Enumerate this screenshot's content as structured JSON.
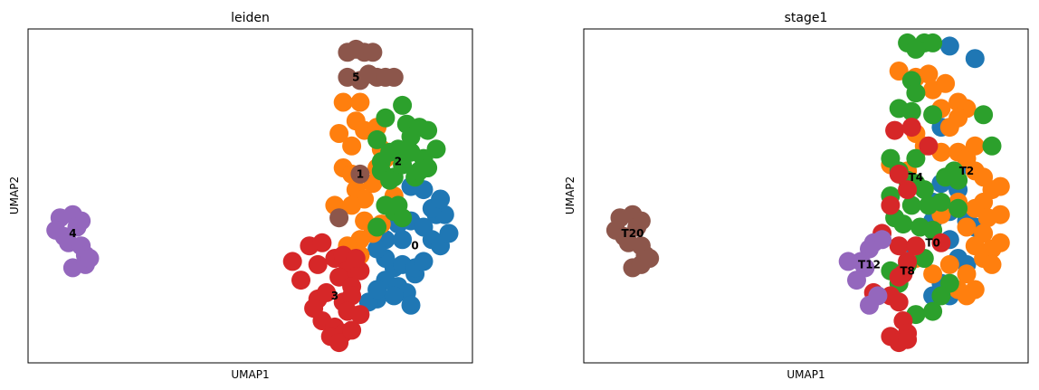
{
  "chart_data": [
    {
      "type": "scatter",
      "title": "leiden",
      "xlabel": "UMAP1",
      "ylabel": "UMAP2",
      "ticks": "none",
      "grid": false,
      "legend": "labels on data (cluster centroids)",
      "xlim": [
        0,
        100
      ],
      "ylim": [
        0,
        100
      ],
      "groups": [
        {
          "label": "0",
          "color": "#1f77b4",
          "label_xy": [
            89,
            34
          ],
          "points": [
            [
              82,
              36
            ],
            [
              86,
              36
            ],
            [
              88,
              42
            ],
            [
              85,
              41
            ],
            [
              91,
              40
            ],
            [
              93,
              36
            ],
            [
              95,
              34
            ],
            [
              97,
              38
            ],
            [
              94,
              44
            ],
            [
              96,
              44
            ],
            [
              91,
              52
            ],
            [
              88,
              53
            ],
            [
              93,
              46
            ],
            [
              95,
              49
            ],
            [
              84,
              27
            ],
            [
              82,
              23
            ],
            [
              80,
              17
            ],
            [
              85,
              21
            ],
            [
              87,
              19
            ],
            [
              89,
              25
            ],
            [
              82,
              30
            ],
            [
              86,
              28
            ],
            [
              89,
              27
            ],
            [
              91,
              29
            ],
            [
              88,
              15
            ],
            [
              84,
              18
            ],
            [
              78,
              16
            ],
            [
              80,
              20
            ],
            [
              80,
              33
            ],
            [
              79,
              38
            ]
          ]
        },
        {
          "label": "1",
          "color": "#ff7f0e",
          "label_xy": [
            76,
            57
          ],
          "points": [
            [
              72,
              80
            ],
            [
              76,
              80
            ],
            [
              75,
              74
            ],
            [
              77,
              71
            ],
            [
              80,
              72
            ],
            [
              81,
              65
            ],
            [
              71,
              70
            ],
            [
              74,
              66
            ],
            [
              72,
              59
            ],
            [
              74,
              57
            ],
            [
              75,
              52
            ],
            [
              77,
              49
            ],
            [
              79,
              54
            ],
            [
              80,
              59
            ],
            [
              70,
              47
            ],
            [
              74,
              47
            ],
            [
              77,
              42
            ],
            [
              79,
              38
            ],
            [
              81,
              41
            ],
            [
              76,
              36
            ],
            [
              73,
              34
            ],
            [
              76,
              31
            ],
            [
              75,
              28
            ],
            [
              84,
              50
            ],
            [
              82,
              62
            ]
          ]
        },
        {
          "label": "2",
          "color": "#2ca02c",
          "label_xy": [
            85,
            61
          ],
          "points": [
            [
              82,
              75
            ],
            [
              86,
              79
            ],
            [
              87,
              73
            ],
            [
              88,
              69
            ],
            [
              90,
              72
            ],
            [
              92,
              71
            ],
            [
              94,
              65
            ],
            [
              85,
              65
            ],
            [
              88,
              64
            ],
            [
              81,
              61
            ],
            [
              83,
              64
            ],
            [
              84,
              56
            ],
            [
              86,
              60
            ],
            [
              89,
              56
            ],
            [
              90,
              58
            ],
            [
              91,
              62
            ],
            [
              92,
              59
            ],
            [
              81,
              58
            ],
            [
              83,
              55
            ],
            [
              82,
              47
            ],
            [
              84,
              45
            ],
            [
              86,
              43
            ],
            [
              80,
              40
            ],
            [
              85,
              47
            ],
            [
              80,
              68
            ]
          ]
        },
        {
          "label": "3",
          "color": "#d62728",
          "label_xy": [
            70,
            18
          ],
          "points": [
            [
              64,
              34
            ],
            [
              67,
              35
            ],
            [
              66,
              28
            ],
            [
              70,
              30
            ],
            [
              72,
              31
            ],
            [
              73,
              26
            ],
            [
              71,
              24
            ],
            [
              74,
              21
            ],
            [
              76,
              26
            ],
            [
              75,
              30
            ],
            [
              60,
              29
            ],
            [
              62,
              23
            ],
            [
              66,
              17
            ],
            [
              68,
              19
            ],
            [
              72,
              16
            ],
            [
              74,
              18
            ],
            [
              73,
              13
            ],
            [
              76,
              12
            ],
            [
              65,
              14
            ],
            [
              67,
              10
            ],
            [
              70,
              8
            ],
            [
              72,
              6
            ],
            [
              69,
              5
            ],
            [
              71,
              3
            ],
            [
              74,
              7
            ]
          ]
        },
        {
          "label": "4",
          "color": "#9467bd",
          "label_xy": [
            8,
            38
          ],
          "points": [
            [
              5,
              43
            ],
            [
              8,
              44
            ],
            [
              10,
              42
            ],
            [
              4,
              39
            ],
            [
              6,
              37
            ],
            [
              9,
              40
            ],
            [
              7,
              35
            ],
            [
              10,
              34
            ],
            [
              11,
              31
            ],
            [
              8,
              27
            ],
            [
              11,
              28
            ],
            [
              12,
              30
            ]
          ]
        },
        {
          "label": "5",
          "color": "#8c564b",
          "label_xy": [
            75,
            88
          ],
          "points": [
            [
              73,
              96
            ],
            [
              75,
              97
            ],
            [
              77,
              96
            ],
            [
              79,
              96
            ],
            [
              73,
              88
            ],
            [
              76,
              87
            ],
            [
              78,
              89
            ],
            [
              80,
              88
            ],
            [
              82,
              88
            ],
            [
              84,
              88
            ],
            [
              76,
              57
            ],
            [
              71,
              43
            ]
          ]
        }
      ]
    },
    {
      "type": "scatter",
      "title": "stage1",
      "xlabel": "UMAP1",
      "ylabel": "UMAP2",
      "ticks": "none",
      "grid": false,
      "legend": "labels on data (group centroids)",
      "xlim": [
        0,
        100
      ],
      "ylim": [
        0,
        100
      ],
      "groups": [
        {
          "label": "T0",
          "color": "#1f77b4",
          "label_xy": [
            80,
            35
          ],
          "points": [
            [
              84,
              98
            ],
            [
              90,
              94
            ],
            [
              82,
              72
            ],
            [
              88,
              60
            ],
            [
              82,
              54
            ],
            [
              86,
              52
            ],
            [
              80,
              48
            ],
            [
              84,
              45
            ],
            [
              88,
              42
            ],
            [
              80,
              42
            ],
            [
              84,
              36
            ],
            [
              86,
              30
            ],
            [
              88,
              28
            ],
            [
              82,
              22
            ],
            [
              84,
              18
            ],
            [
              80,
              18
            ],
            [
              76,
              32
            ],
            [
              90,
              40
            ]
          ]
        },
        {
          "label": "T2",
          "color": "#ff7f0e",
          "label_xy": [
            88,
            58
          ],
          "points": [
            [
              72,
              90
            ],
            [
              76,
              88
            ],
            [
              79,
              89
            ],
            [
              80,
              84
            ],
            [
              83,
              86
            ],
            [
              86,
              80
            ],
            [
              88,
              78
            ],
            [
              86,
              75
            ],
            [
              82,
              78
            ],
            [
              84,
              72
            ],
            [
              76,
              70
            ],
            [
              78,
              66
            ],
            [
              82,
              64
            ],
            [
              86,
              64
            ],
            [
              90,
              66
            ],
            [
              88,
              62
            ],
            [
              90,
              58
            ],
            [
              92,
              56
            ],
            [
              94,
              52
            ],
            [
              96,
              53
            ],
            [
              92,
              48
            ],
            [
              93,
              43
            ],
            [
              96,
              44
            ],
            [
              90,
              46
            ],
            [
              88,
              40
            ],
            [
              92,
              38
            ],
            [
              94,
              33
            ],
            [
              96,
              35
            ],
            [
              90,
              34
            ],
            [
              92,
              30
            ],
            [
              94,
              28
            ],
            [
              82,
              44
            ],
            [
              86,
              48
            ],
            [
              80,
              25
            ],
            [
              84,
              28
            ],
            [
              88,
              25
            ],
            [
              90,
              20
            ],
            [
              86,
              20
            ],
            [
              88,
              18
            ],
            [
              76,
              30
            ],
            [
              74,
              58
            ],
            [
              70,
              60
            ]
          ]
        },
        {
          "label": "T4",
          "color": "#2ca02c",
          "label_xy": [
            76,
            56
          ],
          "points": [
            [
              74,
              99
            ],
            [
              78,
              99
            ],
            [
              80,
              99
            ],
            [
              76,
              97
            ],
            [
              75,
              87
            ],
            [
              76,
              83
            ],
            [
              72,
              78
            ],
            [
              75,
              77
            ],
            [
              80,
              76
            ],
            [
              70,
              62
            ],
            [
              76,
              62
            ],
            [
              72,
              58
            ],
            [
              74,
              55
            ],
            [
              76,
              54
            ],
            [
              78,
              52
            ],
            [
              70,
              50
            ],
            [
              75,
              47
            ],
            [
              79,
              47
            ],
            [
              82,
              48
            ],
            [
              71,
              43
            ],
            [
              73,
              41
            ],
            [
              77,
              40
            ],
            [
              80,
              39
            ],
            [
              86,
              46
            ],
            [
              86,
              55
            ],
            [
              83,
              56
            ],
            [
              85,
              58
            ],
            [
              92,
              76
            ],
            [
              94,
              66
            ],
            [
              78,
              30
            ],
            [
              84,
              22
            ],
            [
              82,
              18
            ],
            [
              70,
              26
            ],
            [
              72,
              22
            ],
            [
              76,
              12
            ],
            [
              80,
              13
            ],
            [
              74,
              28
            ]
          ]
        },
        {
          "label": "T8",
          "color": "#d62728",
          "label_xy": [
            74,
            26
          ],
          "points": [
            [
              71,
              71
            ],
            [
              75,
              72
            ],
            [
              79,
              66
            ],
            [
              72,
              57
            ],
            [
              74,
              52
            ],
            [
              70,
              47
            ],
            [
              68,
              38
            ],
            [
              72,
              34
            ],
            [
              76,
              34
            ],
            [
              82,
              35
            ],
            [
              74,
              29
            ],
            [
              73,
              25
            ],
            [
              72,
              24
            ],
            [
              66,
              19
            ],
            [
              70,
              18
            ],
            [
              72,
              16
            ],
            [
              73,
              10
            ],
            [
              74,
              6
            ],
            [
              70,
              5
            ],
            [
              72,
              3
            ],
            [
              74,
              4
            ]
          ]
        },
        {
          "label": "T12",
          "color": "#9467bd",
          "label_xy": [
            65,
            28
          ],
          "points": [
            [
              66,
              35
            ],
            [
              68,
              36
            ],
            [
              65,
              33
            ],
            [
              60,
              29
            ],
            [
              63,
              29
            ],
            [
              64,
              27
            ],
            [
              62,
              23
            ],
            [
              67,
              18
            ],
            [
              65,
              15
            ]
          ]
        },
        {
          "label": "T20",
          "color": "#8c564b",
          "label_xy": [
            9,
            38
          ],
          "points": [
            [
              6,
              43
            ],
            [
              9,
              44
            ],
            [
              11,
              42
            ],
            [
              5,
              39
            ],
            [
              7,
              37
            ],
            [
              10,
              40
            ],
            [
              8,
              35
            ],
            [
              11,
              34
            ],
            [
              12,
              31
            ],
            [
              9,
              27
            ],
            [
              11,
              28
            ],
            [
              13,
              30
            ]
          ]
        }
      ]
    }
  ]
}
